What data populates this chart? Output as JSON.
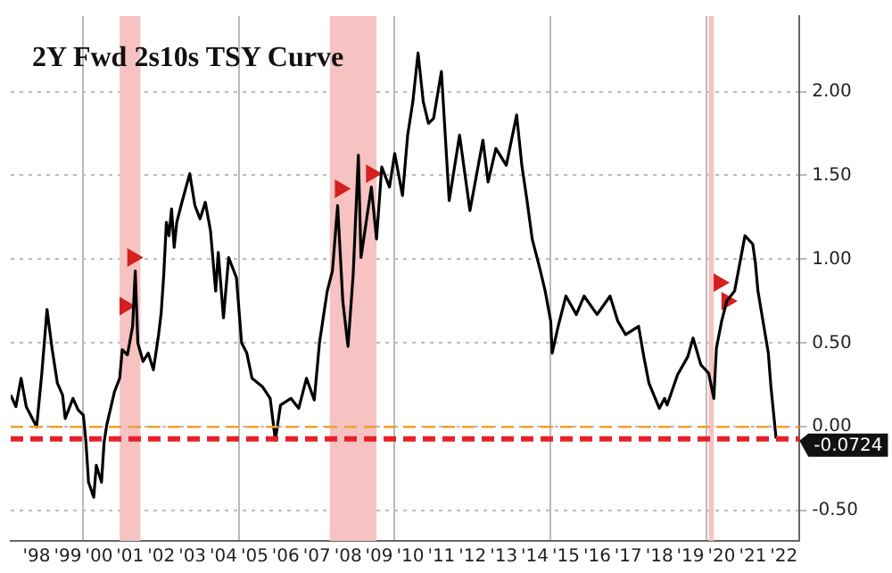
{
  "chart_data": {
    "type": "line",
    "title": "2Y Fwd 2s10s TSY Curve",
    "xlim": [
      "1997-09",
      "2023-01"
    ],
    "xticks": [
      {
        "value": "1998-07",
        "label": "'98"
      },
      {
        "value": "1999-07",
        "label": "'99"
      },
      {
        "value": "2000-01",
        "label": null
      },
      {
        "value": "2000-07",
        "label": "'00"
      },
      {
        "value": "2001-07",
        "label": "'01"
      },
      {
        "value": "2002-07",
        "label": "'02"
      },
      {
        "value": "2003-07",
        "label": "'03"
      },
      {
        "value": "2004-07",
        "label": "'04"
      },
      {
        "value": "2005-01",
        "label": null
      },
      {
        "value": "2005-07",
        "label": "'05"
      },
      {
        "value": "2006-07",
        "label": "'06"
      },
      {
        "value": "2007-07",
        "label": "'07"
      },
      {
        "value": "2008-07",
        "label": "'08"
      },
      {
        "value": "2009-07",
        "label": "'09"
      },
      {
        "value": "2010-01",
        "label": null
      },
      {
        "value": "2010-07",
        "label": "'10"
      },
      {
        "value": "2011-07",
        "label": "'11"
      },
      {
        "value": "2012-07",
        "label": "'12"
      },
      {
        "value": "2013-07",
        "label": "'13"
      },
      {
        "value": "2014-07",
        "label": "'14"
      },
      {
        "value": "2015-01",
        "label": null
      },
      {
        "value": "2015-07",
        "label": "'15"
      },
      {
        "value": "2016-07",
        "label": "'16"
      },
      {
        "value": "2017-07",
        "label": "'17"
      },
      {
        "value": "2018-07",
        "label": "'18"
      },
      {
        "value": "2019-07",
        "label": "'19"
      },
      {
        "value": "2020-01",
        "label": null
      },
      {
        "value": "2020-07",
        "label": "'20"
      },
      {
        "value": "2021-07",
        "label": "'21"
      },
      {
        "value": "2022-07",
        "label": "'22"
      }
    ],
    "ylim": [
      -0.68,
      2.45
    ],
    "yticks": [
      {
        "value": -0.5,
        "label": "-0.50"
      },
      {
        "value": 0,
        "label": "0.00"
      },
      {
        "value": 0.5,
        "label": "0.50"
      },
      {
        "value": 1,
        "label": "1.00"
      },
      {
        "value": 1.5,
        "label": "1.50"
      },
      {
        "value": 2,
        "label": "2.00"
      }
    ],
    "grid": true,
    "legend": false,
    "bands": [
      {
        "axis": "x",
        "from": "2001-03",
        "to": "2001-11",
        "color": "#f6c2c2"
      },
      {
        "axis": "x",
        "from": "2007-12",
        "to": "2009-06",
        "color": "#f6c2c2"
      },
      {
        "axis": "x",
        "from": "2020-02",
        "to": "2020-04",
        "color": "#f6c2c2"
      }
    ],
    "ref_lines": [
      {
        "axis": "y",
        "value": 0,
        "color": "#f0a030",
        "line_style": "dashed"
      },
      {
        "axis": "y",
        "value": -0.0724,
        "label": "-0.0724",
        "color": "#e8202a",
        "line_style": "dashed"
      }
    ],
    "series": [
      {
        "color": "#000000",
        "marker": "none",
        "x": [
          "1997-09",
          "1997-11",
          "1998-01",
          "1998-03",
          "1998-07",
          "1998-09",
          "1998-11",
          "1999-01",
          "1999-03",
          "1999-05",
          "1999-06",
          "1999-09",
          "1999-11",
          "2000-01",
          "2000-02",
          "2000-03",
          "2000-05",
          "2000-06",
          "2000-08",
          "2000-09",
          "2000-10",
          "2001-01",
          "2001-03",
          "2001-04",
          "2001-06",
          "2001-08",
          "2001-09",
          "2001-10",
          "2001-12",
          "2002-02",
          "2002-04",
          "2002-06",
          "2002-07",
          "2002-08",
          "2002-09",
          "2002-10",
          "2002-11",
          "2002-12",
          "2003-01",
          "2003-03",
          "2003-06",
          "2003-08",
          "2003-10",
          "2003-12",
          "2004-02",
          "2004-04",
          "2004-05",
          "2004-07",
          "2004-09",
          "2004-12",
          "2005-02",
          "2005-04",
          "2005-06",
          "2005-10",
          "2006-01",
          "2006-03",
          "2006-05",
          "2006-09",
          "2006-12",
          "2007-03",
          "2007-06",
          "2007-08",
          "2007-11",
          "2008-01",
          "2008-03",
          "2008-05",
          "2008-07",
          "2008-09",
          "2008-11",
          "2008-12",
          "2009-04",
          "2009-06",
          "2009-08",
          "2009-11",
          "2010-01",
          "2010-04",
          "2010-06",
          "2010-08",
          "2010-10",
          "2010-12",
          "2011-02",
          "2011-04",
          "2011-07",
          "2011-10",
          "2012-02",
          "2012-06",
          "2012-11",
          "2013-01",
          "2013-04",
          "2013-08",
          "2013-12",
          "2014-02",
          "2014-04",
          "2014-06",
          "2014-09",
          "2014-11",
          "2015-01-05",
          "2015-01-22",
          "2015-04",
          "2015-07",
          "2015-11",
          "2016-02",
          "2016-07",
          "2016-12",
          "2017-03",
          "2017-06",
          "2017-11",
          "2018-01",
          "2018-03",
          "2018-07",
          "2018-09",
          "2018-10",
          "2019-02",
          "2019-06",
          "2019-08",
          "2019-11",
          "2020-02",
          "2020-04",
          "2020-05",
          "2020-07",
          "2020-09",
          "2020-12",
          "2021-04",
          "2021-07",
          "2021-08",
          "2021-09",
          "2022-01",
          "2022-02",
          "2022-04"
        ],
        "values": [
          0.19,
          0.12,
          0.29,
          0.12,
          0.0,
          0.32,
          0.7,
          0.46,
          0.26,
          0.19,
          0.05,
          0.17,
          0.1,
          0.07,
          -0.09,
          -0.33,
          -0.42,
          -0.23,
          -0.33,
          -0.09,
          0.01,
          0.21,
          0.29,
          0.46,
          0.43,
          0.6,
          0.93,
          0.5,
          0.39,
          0.44,
          0.34,
          0.55,
          0.68,
          0.91,
          1.22,
          1.14,
          1.3,
          1.07,
          1.22,
          1.34,
          1.51,
          1.32,
          1.24,
          1.34,
          1.17,
          0.81,
          1.04,
          0.65,
          1.01,
          0.89,
          0.5,
          0.44,
          0.29,
          0.24,
          0.17,
          -0.08,
          0.13,
          0.17,
          0.11,
          0.29,
          0.16,
          0.5,
          0.81,
          0.93,
          1.32,
          0.75,
          0.48,
          0.91,
          1.62,
          1.01,
          1.43,
          1.12,
          1.55,
          1.43,
          1.63,
          1.38,
          1.74,
          1.94,
          2.23,
          1.94,
          1.81,
          1.84,
          2.12,
          1.35,
          1.74,
          1.29,
          1.71,
          1.46,
          1.66,
          1.56,
          1.86,
          1.56,
          1.35,
          1.12,
          0.94,
          0.81,
          0.63,
          0.44,
          0.6,
          0.78,
          0.67,
          0.78,
          0.67,
          0.78,
          0.63,
          0.55,
          0.6,
          0.42,
          0.26,
          0.11,
          0.17,
          0.13,
          0.31,
          0.42,
          0.53,
          0.37,
          0.32,
          0.17,
          0.47,
          0.63,
          0.75,
          0.81,
          1.14,
          1.09,
          0.98,
          0.81,
          0.44,
          0.24,
          -0.07
        ]
      },
      {
        "type": "scatter",
        "color": "#d42020",
        "marker": "triangle",
        "x": [
          "2001-05",
          "2001-08",
          "2008-04",
          "2009-04",
          "2020-06",
          "2020-09"
        ],
        "values": [
          0.72,
          1.01,
          1.42,
          1.51,
          0.86,
          0.75
        ]
      }
    ]
  }
}
